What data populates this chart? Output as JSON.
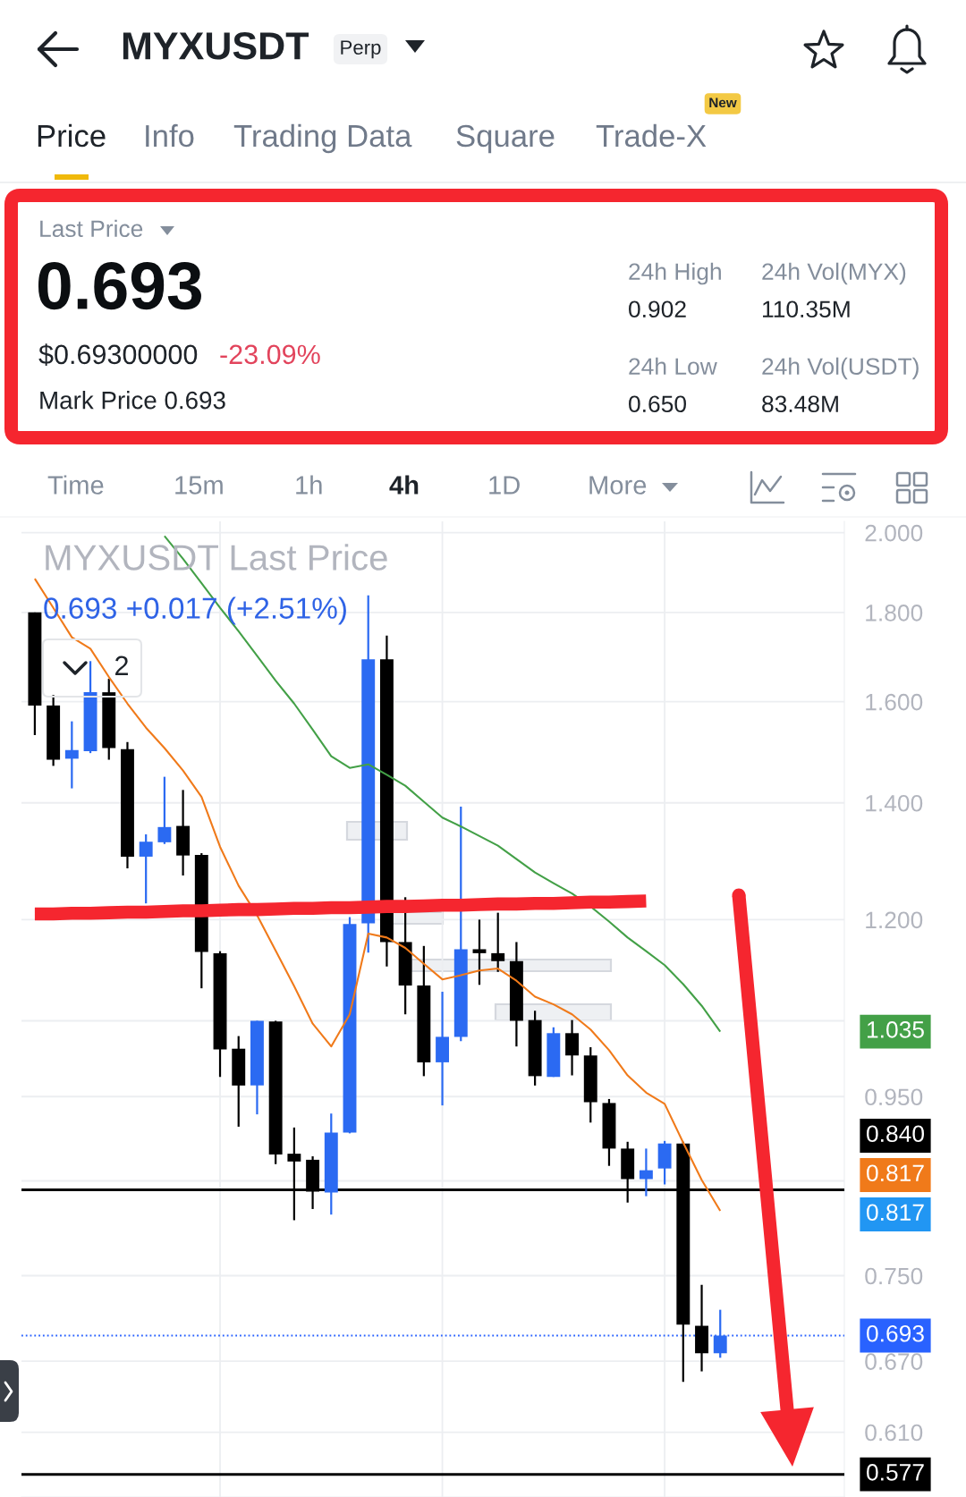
{
  "chart_data": {
    "type": "candlestick",
    "title": "MYXUSDT Last Price",
    "subtitle": "0.693 +0.017 (+2.51%)",
    "annotations": [
      "MYXUSDT",
      "Perp",
      "Price",
      "Info",
      "Trading Data",
      "Square",
      "Trade-X",
      "New",
      "Last Price",
      "0.693",
      "$0.69300000",
      "-23.09%",
      "Mark Price 0.693",
      "24h High",
      "0.902",
      "24h Vol(MYX)",
      "110.35M",
      "24h Low",
      "0.650",
      "24h Vol(USDT)",
      "83.48M",
      "Time",
      "15m",
      "1h",
      "4h",
      "1D",
      "More",
      "2",
      "0.817",
      "0.817",
      "1.035"
    ],
    "categories": [
      null,
      null,
      null,
      null,
      null,
      null,
      null,
      null,
      null,
      null,
      null,
      null,
      null,
      null,
      null,
      null,
      null,
      null,
      null,
      null,
      null,
      null,
      null,
      null,
      null,
      null,
      null,
      null,
      null,
      null,
      null,
      null,
      null,
      null,
      null,
      null,
      null,
      null
    ],
    "ohlc": [
      [
        1.8,
        1.8,
        1.531,
        1.592
      ],
      [
        1.592,
        1.614,
        1.47,
        1.482
      ],
      [
        1.484,
        1.559,
        1.427,
        1.501
      ],
      [
        1.499,
        1.688,
        1.495,
        1.62
      ],
      [
        1.62,
        1.649,
        1.482,
        1.505
      ],
      [
        1.503,
        1.517,
        1.284,
        1.304
      ],
      [
        1.304,
        1.343,
        1.226,
        1.33
      ],
      [
        1.329,
        1.449,
        1.326,
        1.356
      ],
      [
        1.358,
        1.424,
        1.272,
        1.306
      ],
      [
        1.307,
        1.31,
        1.096,
        1.15
      ],
      [
        1.148,
        1.151,
        0.975,
        1.011
      ],
      [
        1.012,
        1.029,
        0.913,
        0.964
      ],
      [
        0.964,
        1.05,
        0.928,
        1.05
      ],
      [
        1.049,
        1.05,
        0.869,
        0.88
      ],
      [
        0.881,
        0.912,
        0.807,
        0.872
      ],
      [
        0.874,
        0.878,
        0.819,
        0.838
      ],
      [
        0.837,
        0.929,
        0.813,
        0.906
      ],
      [
        0.906,
        1.204,
        0.905,
        1.193
      ],
      [
        1.194,
        1.841,
        1.149,
        1.692
      ],
      [
        1.692,
        1.746,
        1.128,
        1.165
      ],
      [
        1.165,
        1.236,
        1.059,
        1.1
      ],
      [
        1.1,
        1.159,
        0.976,
        0.994
      ],
      [
        0.994,
        1.091,
        0.939,
        1.028
      ],
      [
        1.028,
        1.393,
        1.022,
        1.154
      ],
      [
        1.154,
        1.2,
        1.101,
        1.148
      ],
      [
        1.148,
        1.211,
        1.12,
        1.136
      ],
      [
        1.136,
        1.165,
        1.015,
        1.05
      ],
      [
        1.051,
        1.064,
        0.964,
        0.976
      ],
      [
        0.975,
        1.041,
        0.975,
        1.033
      ],
      [
        1.033,
        1.051,
        0.977,
        1.003
      ],
      [
        1.003,
        1.014,
        0.918,
        0.943
      ],
      [
        0.942,
        0.947,
        0.867,
        0.887
      ],
      [
        0.887,
        0.895,
        0.826,
        0.852
      ],
      [
        0.852,
        0.887,
        0.833,
        0.862
      ],
      [
        0.864,
        0.896,
        0.846,
        0.893
      ],
      [
        0.893,
        0.895,
        0.652,
        0.703
      ],
      [
        0.702,
        0.741,
        0.661,
        0.677
      ],
      [
        0.677,
        0.717,
        0.673,
        0.693
      ]
    ],
    "colors": [
      "#000000",
      "#000000",
      "#2b6af2",
      "#2b6af2",
      "#000000",
      "#000000",
      "#2b6af2",
      "#2b6af2",
      "#000000",
      "#000000",
      "#000000",
      "#000000",
      "#2b6af2",
      "#000000",
      "#000000",
      "#000000",
      "#2b6af2",
      "#2b6af2",
      "#2b6af2",
      "#000000",
      "#000000",
      "#000000",
      "#2b6af2",
      "#2b6af2",
      "#000000",
      "#000000",
      "#000000",
      "#000000",
      "#2b6af2",
      "#000000",
      "#000000",
      "#000000",
      "#000000",
      "#2b6af2",
      "#2b6af2",
      "#000000",
      "#000000",
      "#2b6af2"
    ],
    "series": [
      {
        "type": "line",
        "color": "#f07a1a",
        "values": [
          1.882,
          1.811,
          1.742,
          1.716,
          1.653,
          1.596,
          1.546,
          1.505,
          1.461,
          1.411,
          1.321,
          1.255,
          1.207,
          1.152,
          1.099,
          1.046,
          1.015,
          1.059,
          1.178,
          1.172,
          1.156,
          1.132,
          1.109,
          1.115,
          1.122,
          1.125,
          1.107,
          1.084,
          1.073,
          1.059,
          1.038,
          1.01,
          0.977,
          0.955,
          0.941,
          0.894,
          0.851,
          0.817
        ]
      },
      {
        "type": "line",
        "color": "#43a047",
        "values": [
          null,
          null,
          null,
          null,
          null,
          null,
          null,
          1.991,
          1.932,
          1.871,
          1.811,
          1.756,
          1.7,
          1.645,
          1.596,
          1.542,
          1.489,
          1.466,
          1.473,
          1.453,
          1.432,
          1.402,
          1.373,
          1.357,
          1.34,
          1.323,
          1.3,
          1.277,
          1.259,
          1.242,
          1.221,
          1.197,
          1.172,
          1.151,
          1.13,
          1.102,
          1.071,
          1.035
        ]
      },
      {
        "type": "line",
        "color": "#f5262f",
        "values": [
          1.209,
          1.209,
          1.21,
          1.21,
          1.211,
          1.212,
          1.212,
          1.213,
          1.214,
          1.214,
          1.215,
          1.216,
          1.216,
          1.217,
          1.218,
          1.218,
          1.219,
          1.219,
          1.22,
          1.221,
          1.221,
          1.222,
          1.223,
          1.223,
          1.224,
          1.225,
          1.225,
          1.226,
          1.226,
          1.227,
          1.228,
          1.228,
          1.229,
          1.23,
          null,
          null,
          null,
          null
        ]
      }
    ],
    "ref_lines": [
      {
        "axis": "y",
        "value": 0.84,
        "label": "0.840",
        "color": "#000000"
      },
      {
        "axis": "y",
        "value": 0.577,
        "label": "0.577",
        "color": "#000000"
      },
      {
        "axis": "y",
        "value": 0.693,
        "label": "0.693",
        "color": "#2962ff",
        "line_style": "dotted"
      }
    ],
    "log": true,
    "ylim": [
      0.56,
      2.03
    ],
    "yticks": [
      {
        "value": 2.0,
        "label": "2.000"
      },
      {
        "value": 1.8,
        "label": "1.800"
      },
      {
        "value": 1.6,
        "label": "1.600"
      },
      {
        "value": 1.4,
        "label": "1.400"
      },
      {
        "value": 1.2,
        "label": "1.200"
      },
      {
        "value": 1.05,
        "label": null
      },
      {
        "value": 0.95,
        "label": "0.950"
      },
      {
        "value": 0.85,
        "label": null
      },
      {
        "value": 0.75,
        "label": "0.750"
      },
      {
        "value": 0.67,
        "label": "0.670"
      },
      {
        "value": 0.61,
        "label": "0.610"
      }
    ],
    "grid": true,
    "tick_labels": "y"
  }
}
